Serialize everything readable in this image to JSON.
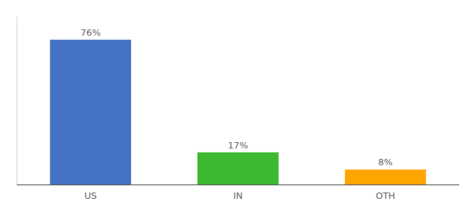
{
  "chart_data": {
    "type": "bar",
    "categories": [
      "US",
      "IN",
      "OTH"
    ],
    "values": [
      76,
      17,
      8
    ],
    "value_labels": [
      "76%",
      "17%",
      "8%"
    ],
    "colors": [
      "#4472C4",
      "#3CB931",
      "#FFA500"
    ],
    "ylim": [
      0,
      88
    ],
    "data_labels": true,
    "tick_labels": "x",
    "grid": false
  }
}
